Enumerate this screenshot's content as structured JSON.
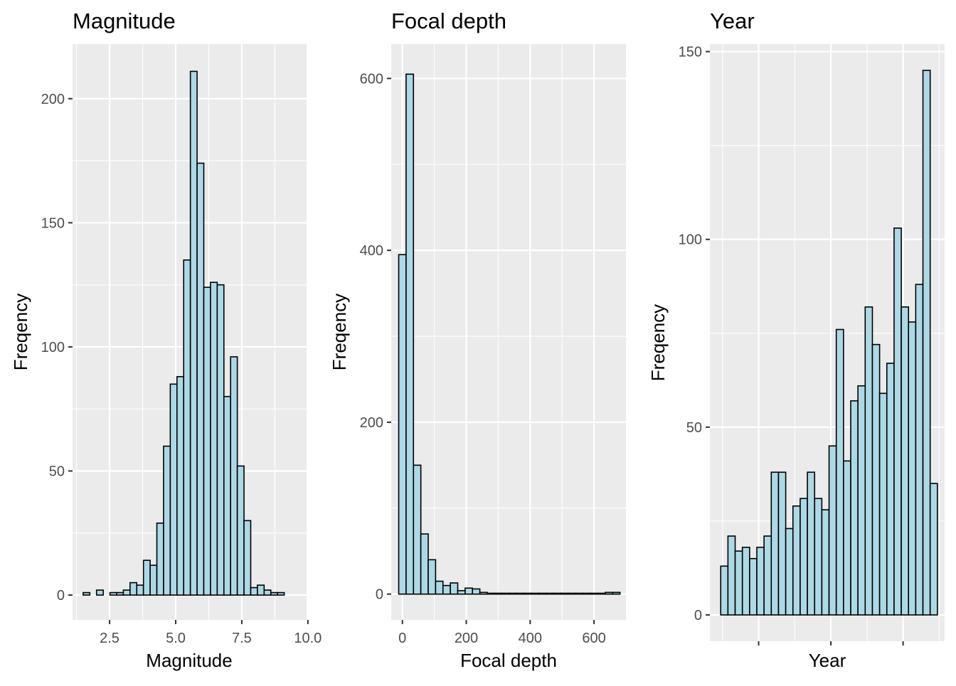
{
  "chart_data": [
    {
      "type": "bar",
      "title": "Magnitude",
      "xlabel": "Magnitude",
      "ylabel": "Freqency",
      "xlim": [
        1.1,
        9.95
      ],
      "ylim": [
        -10,
        222
      ],
      "xticks": [
        2.5,
        5.0,
        7.5,
        10.0
      ],
      "xtick_labels": [
        "2.5",
        "5.0",
        "7.5",
        "10.0"
      ],
      "yticks": [
        0,
        50,
        100,
        150,
        200
      ],
      "ytick_labels": [
        "0",
        "50",
        "100",
        "150",
        "200"
      ],
      "bin_width": 0.2535,
      "bins_start": 1.5,
      "values": [
        1,
        0,
        2,
        0,
        1,
        1,
        2,
        5,
        4,
        14,
        12,
        29,
        60,
        85,
        88,
        135,
        211,
        174,
        124,
        126,
        125,
        80,
        96,
        52,
        30,
        3,
        4,
        2,
        1,
        1
      ],
      "grid": true,
      "bar_fill": "#add8e6",
      "bar_stroke": "#000000"
    },
    {
      "type": "bar",
      "title": "Focal depth",
      "xlabel": "Focal depth",
      "ylabel": "Freqency",
      "xlim": [
        -35,
        700
      ],
      "ylim": [
        -30,
        640
      ],
      "xticks": [
        0,
        200,
        400,
        600
      ],
      "xtick_labels": [
        "0",
        "200",
        "400",
        "600"
      ],
      "yticks": [
        0,
        200,
        400,
        600
      ],
      "ytick_labels": [
        "0",
        "200",
        "400",
        "600"
      ],
      "bin_width": 23.1,
      "bins_start": -11.55,
      "values": [
        395,
        605,
        150,
        70,
        40,
        15,
        10,
        13,
        4,
        7,
        6,
        2,
        1,
        1,
        1,
        1,
        1,
        1,
        1,
        1,
        1,
        1,
        1,
        1,
        1,
        1,
        1,
        1,
        2,
        2
      ],
      "grid": true,
      "bar_fill": "#add8e6",
      "bar_stroke": "#000000"
    },
    {
      "type": "bar",
      "title": "Year",
      "xlabel": "Year",
      "ylabel": "Freqency",
      "xlim": [
        -1.5,
        31
      ],
      "ylim": [
        -7,
        152
      ],
      "xticks": [
        5.25,
        15.25,
        25.25
      ],
      "xtick_labels": [
        "",
        "",
        ""
      ],
      "yticks": [
        0,
        50,
        100,
        150
      ],
      "ytick_labels": [
        "0",
        "50",
        "100",
        "150"
      ],
      "bin_width": 1,
      "bins_start": 0,
      "values": [
        13,
        21,
        17,
        18,
        15,
        18,
        21,
        38,
        38,
        23,
        29,
        31,
        38,
        31,
        28,
        45,
        76,
        41,
        57,
        61,
        82,
        72,
        59,
        67,
        103,
        82,
        78,
        88,
        145,
        35
      ],
      "grid": true,
      "bar_fill": "#add8e6",
      "bar_stroke": "#000000"
    }
  ]
}
